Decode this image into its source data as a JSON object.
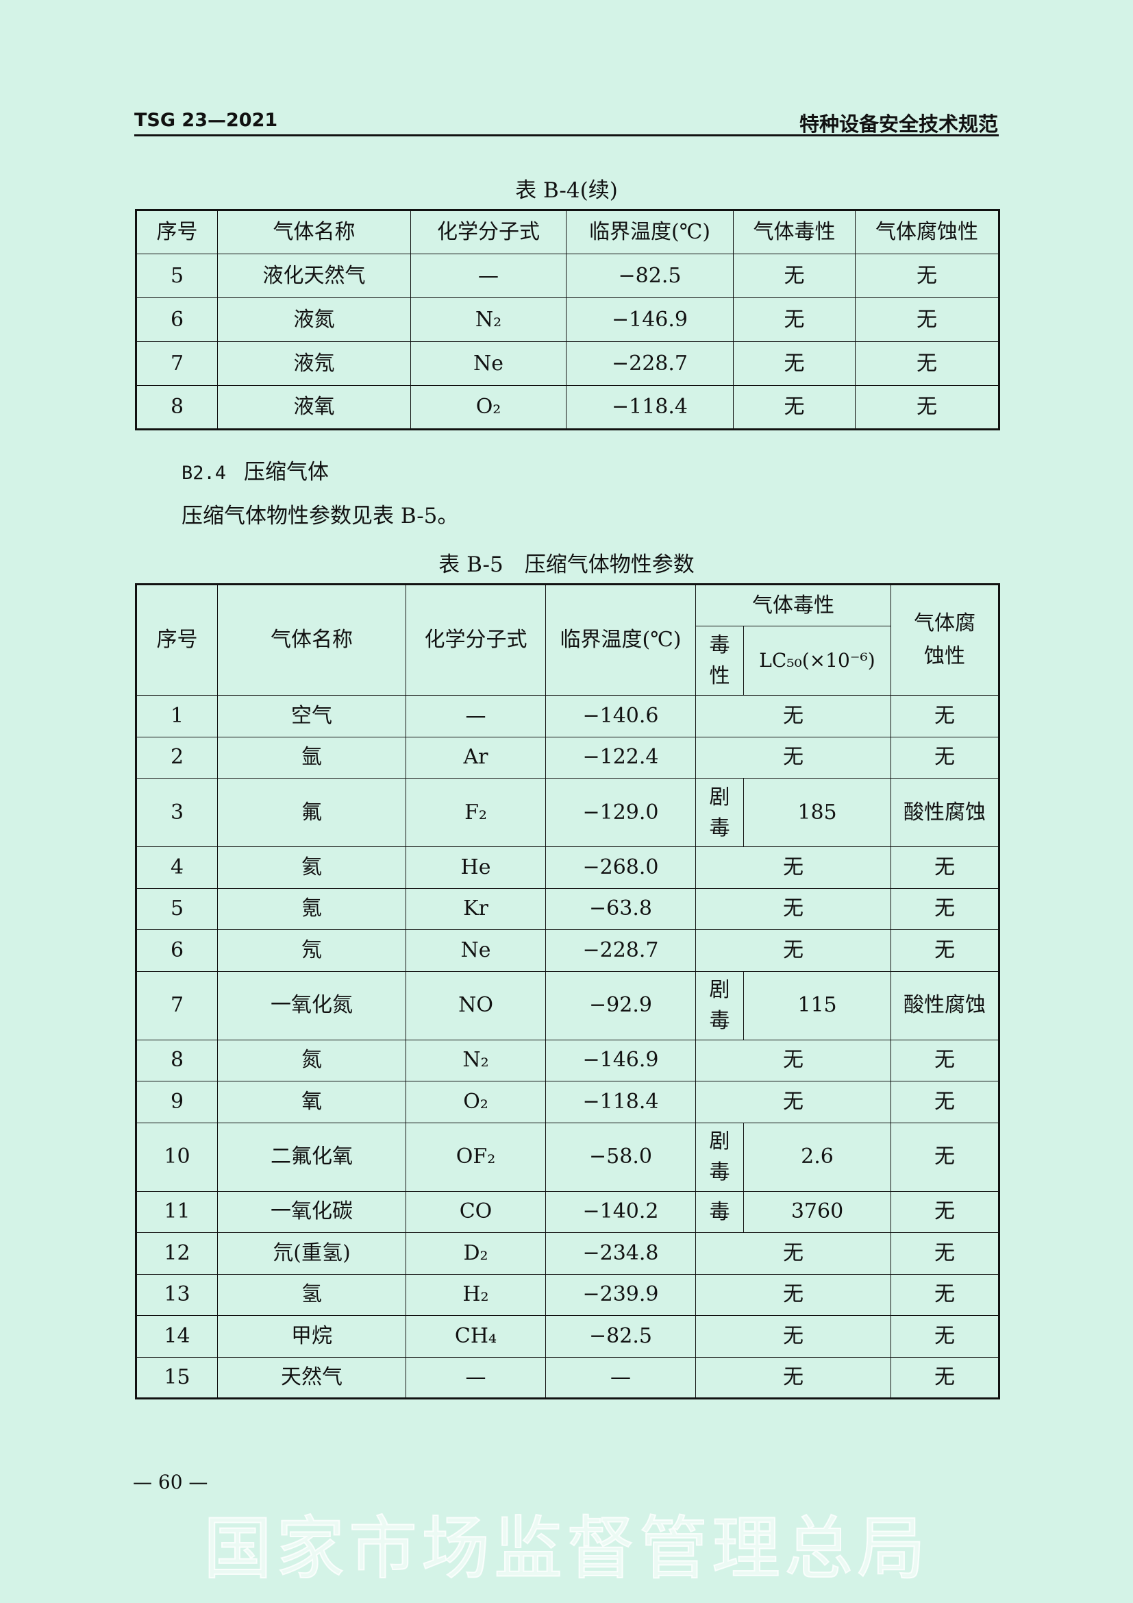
{
  "header": {
    "code": "TSG 23—2021",
    "title": "特种设备安全技术规范"
  },
  "table_b4": {
    "caption": "表 B-4(续)",
    "columns": [
      "序号",
      "气体名称",
      "化学分子式",
      "临界温度(℃)",
      "气体毒性",
      "气体腐蚀性"
    ],
    "rows": [
      [
        "5",
        "液化天然气",
        "—",
        "−82.5",
        "无",
        "无"
      ],
      [
        "6",
        "液氮",
        "N₂",
        "−146.9",
        "无",
        "无"
      ],
      [
        "7",
        "液氖",
        "Ne",
        "−228.7",
        "无",
        "无"
      ],
      [
        "8",
        "液氧",
        "O₂",
        "−118.4",
        "无",
        "无"
      ]
    ]
  },
  "section": {
    "number": "B2.4",
    "title": "压缩气体",
    "text": "压缩气体物性参数见表 B-5。"
  },
  "table_b5": {
    "caption": "表 B-5　压缩气体物性参数",
    "columns": {
      "no": "序号",
      "name": "气体名称",
      "formula": "化学分子式",
      "temp": "临界温度(℃)",
      "toxicity": "气体毒性",
      "tox_level": "毒性",
      "lc50": "LC₅₀(×10⁻⁶)",
      "corrosion": "气体腐蚀性"
    },
    "rows": [
      {
        "no": "1",
        "name": "空气",
        "formula": "—",
        "temp": "−140.6",
        "toxicity": "无",
        "corrosion": "无"
      },
      {
        "no": "2",
        "name": "氩",
        "formula": "Ar",
        "temp": "−122.4",
        "toxicity": "无",
        "corrosion": "无"
      },
      {
        "no": "3",
        "name": "氟",
        "formula": "F₂",
        "temp": "−129.0",
        "tox_level": "剧毒",
        "lc50": "185",
        "corrosion": "酸性腐蚀"
      },
      {
        "no": "4",
        "name": "氦",
        "formula": "He",
        "temp": "−268.0",
        "toxicity": "无",
        "corrosion": "无"
      },
      {
        "no": "5",
        "name": "氪",
        "formula": "Kr",
        "temp": "−63.8",
        "toxicity": "无",
        "corrosion": "无"
      },
      {
        "no": "6",
        "name": "氖",
        "formula": "Ne",
        "temp": "−228.7",
        "toxicity": "无",
        "corrosion": "无"
      },
      {
        "no": "7",
        "name": "一氧化氮",
        "formula": "NO",
        "temp": "−92.9",
        "tox_level": "剧毒",
        "lc50": "115",
        "corrosion": "酸性腐蚀"
      },
      {
        "no": "8",
        "name": "氮",
        "formula": "N₂",
        "temp": "−146.9",
        "toxicity": "无",
        "corrosion": "无"
      },
      {
        "no": "9",
        "name": "氧",
        "formula": "O₂",
        "temp": "−118.4",
        "toxicity": "无",
        "corrosion": "无"
      },
      {
        "no": "10",
        "name": "二氟化氧",
        "formula": "OF₂",
        "temp": "−58.0",
        "tox_level": "剧毒",
        "lc50": "2.6",
        "corrosion": "无"
      },
      {
        "no": "11",
        "name": "一氧化碳",
        "formula": "CO",
        "temp": "−140.2",
        "tox_level": "毒",
        "lc50": "3760",
        "corrosion": "无"
      },
      {
        "no": "12",
        "name": "氘(重氢)",
        "formula": "D₂",
        "temp": "−234.8",
        "toxicity": "无",
        "corrosion": "无"
      },
      {
        "no": "13",
        "name": "氢",
        "formula": "H₂",
        "temp": "−239.9",
        "toxicity": "无",
        "corrosion": "无"
      },
      {
        "no": "14",
        "name": "甲烷",
        "formula": "CH₄",
        "temp": "−82.5",
        "toxicity": "无",
        "corrosion": "无"
      },
      {
        "no": "15",
        "name": "天然气",
        "formula": "—",
        "temp": "—",
        "toxicity": "无",
        "corrosion": "无"
      }
    ]
  },
  "footer": {
    "page": "— 60 —"
  },
  "watermark": "国家市场监督管理总局"
}
